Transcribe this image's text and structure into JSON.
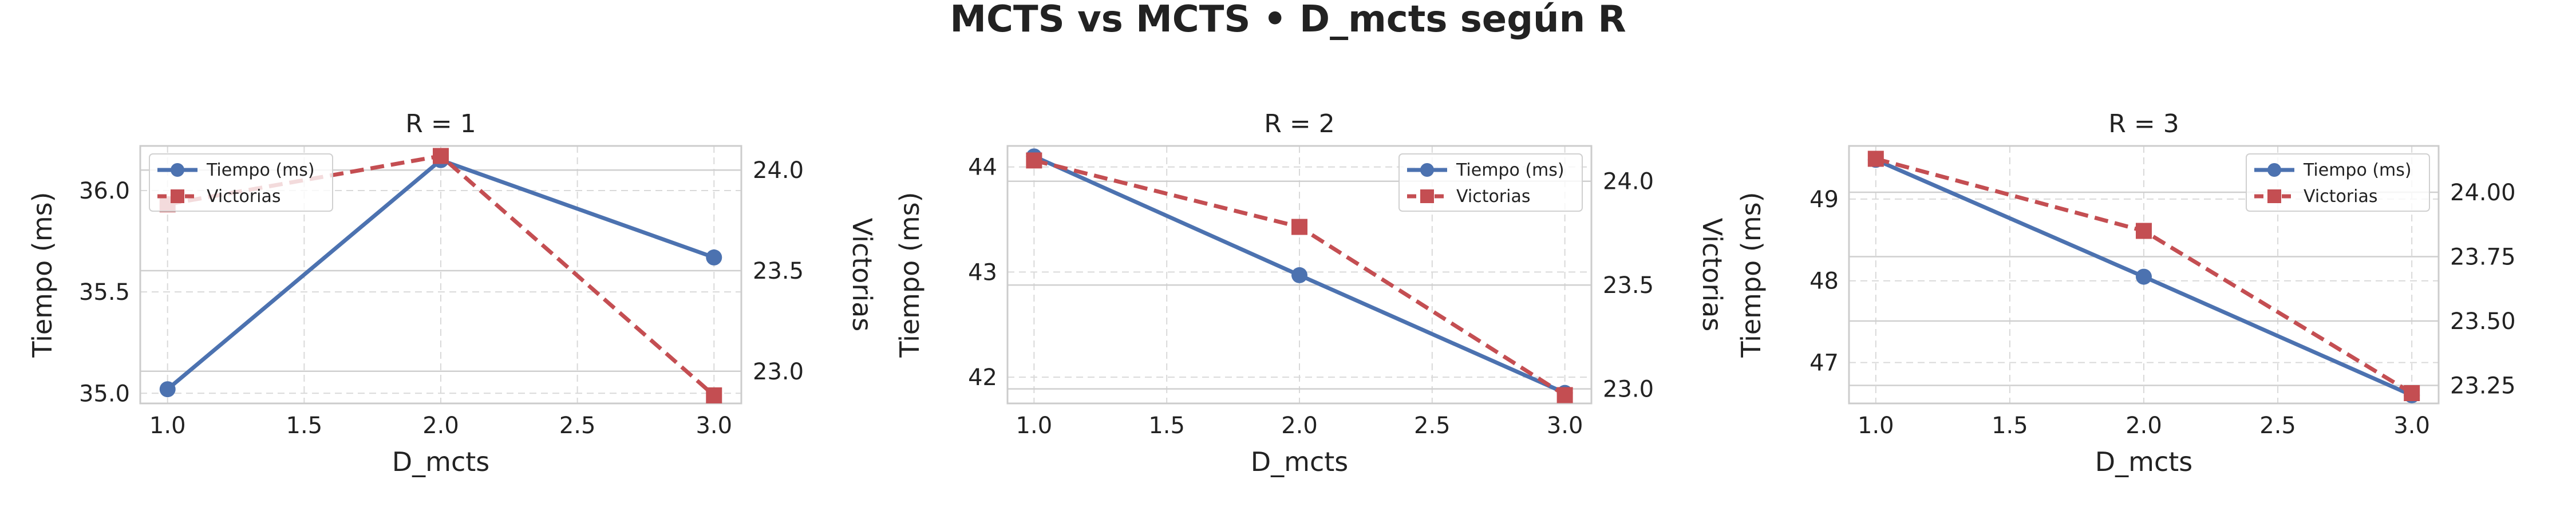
{
  "figure": {
    "title": "MCTS vs MCTS • D_mcts según R"
  },
  "chart_data": [
    {
      "type": "line",
      "title": "R = 1",
      "xlabel": "D_mcts",
      "ylabel_left": "Tiempo (ms)",
      "ylabel_right": "Victorias",
      "x": [
        1.0,
        2.0,
        3.0
      ],
      "xlim": [
        0.9,
        3.1
      ],
      "xticks": [
        "1.0",
        "1.5",
        "2.0",
        "2.5",
        "3.0"
      ],
      "ylim_left": [
        34.95,
        36.22
      ],
      "yticks_left": [
        "35.0",
        "35.5",
        "36.0"
      ],
      "ylim_right": [
        22.84,
        24.12
      ],
      "yticks_right": [
        "23.0",
        "23.5",
        "24.0"
      ],
      "legend_position": "upper-left",
      "grid": true,
      "series": [
        {
          "name": "Tiempo (ms)",
          "axis": "left",
          "color": "#4C72B0",
          "marker": "circle",
          "style": "solid",
          "values": [
            35.02,
            36.15,
            35.67
          ]
        },
        {
          "name": "Victorias",
          "axis": "right",
          "color": "#C44E52",
          "marker": "square",
          "style": "dashed",
          "values": [
            23.83,
            24.07,
            22.88
          ]
        }
      ]
    },
    {
      "type": "line",
      "title": "R = 2",
      "xlabel": "D_mcts",
      "ylabel_left": "Tiempo (ms)",
      "ylabel_right": "Victorias",
      "x": [
        1.0,
        2.0,
        3.0
      ],
      "xlim": [
        0.9,
        3.1
      ],
      "xticks": [
        "1.0",
        "1.5",
        "2.0",
        "2.5",
        "3.0"
      ],
      "ylim_left": [
        41.75,
        44.2
      ],
      "yticks_left": [
        "42",
        "43",
        "44"
      ],
      "ylim_right": [
        22.93,
        24.17
      ],
      "yticks_right": [
        "23.0",
        "23.5",
        "24.0"
      ],
      "legend_position": "upper-right",
      "grid": true,
      "series": [
        {
          "name": "Tiempo (ms)",
          "axis": "left",
          "color": "#4C72B0",
          "marker": "circle",
          "style": "solid",
          "values": [
            44.1,
            42.97,
            41.85
          ]
        },
        {
          "name": "Victorias",
          "axis": "right",
          "color": "#C44E52",
          "marker": "square",
          "style": "dashed",
          "values": [
            24.1,
            23.78,
            22.97
          ]
        }
      ]
    },
    {
      "type": "line",
      "title": "R = 3",
      "xlabel": "D_mcts",
      "ylabel_left": "Tiempo (ms)",
      "ylabel_right": "Victorias",
      "x": [
        1.0,
        2.0,
        3.0
      ],
      "xlim": [
        0.9,
        3.1
      ],
      "xticks": [
        "1.0",
        "1.5",
        "2.0",
        "2.5",
        "3.0"
      ],
      "ylim_left": [
        46.5,
        49.65
      ],
      "yticks_left": [
        "47",
        "48",
        "49"
      ],
      "ylim_right": [
        23.18,
        24.18
      ],
      "yticks_right": [
        "23.25",
        "23.50",
        "23.75",
        "24.00"
      ],
      "legend_position": "upper-right",
      "grid": true,
      "series": [
        {
          "name": "Tiempo (ms)",
          "axis": "left",
          "color": "#4C72B0",
          "marker": "circle",
          "style": "solid",
          "values": [
            49.48,
            48.05,
            46.6
          ]
        },
        {
          "name": "Victorias",
          "axis": "right",
          "color": "#C44E52",
          "marker": "square",
          "style": "dashed",
          "values": [
            24.13,
            23.85,
            23.22
          ]
        }
      ]
    }
  ]
}
